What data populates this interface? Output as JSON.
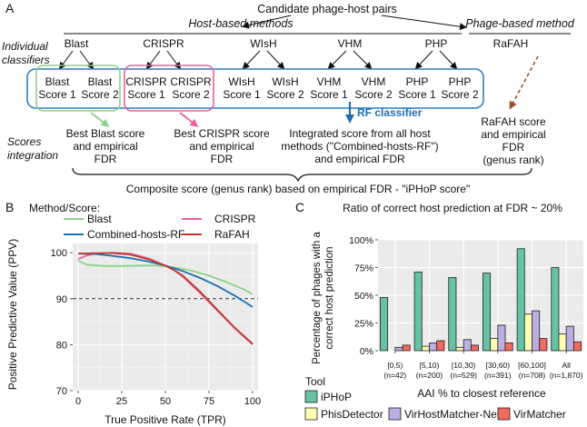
{
  "panelA": {
    "panel_label": "A",
    "top_title": "Candidate phage-host pairs",
    "host_methods_title": "Host-based methods",
    "phage_method_title": "Phage-based method",
    "row_label_classifiers_1": "Individual",
    "row_label_classifiers_2": "classifiers",
    "row_label_integration_1": "Scores",
    "row_label_integration_2": "integration",
    "classifiers": [
      "Blast",
      "CRISPR",
      "WIsH",
      "VHM",
      "PHP"
    ],
    "phage_classifier": "RaFAH",
    "scores": [
      {
        "l1": "Blast",
        "l2": "Score 1"
      },
      {
        "l1": "Blast",
        "l2": "Score 2"
      },
      {
        "l1": "CRISPR",
        "l2": "Score 1"
      },
      {
        "l1": "CRISPR",
        "l2": "Score 2"
      },
      {
        "l1": "WIsH",
        "l2": "Score 1"
      },
      {
        "l1": "WIsH",
        "l2": "Score 2"
      },
      {
        "l1": "VHM",
        "l2": "Score 1"
      },
      {
        "l1": "VHM",
        "l2": "Score 2"
      },
      {
        "l1": "PHP",
        "l2": "Score 1"
      },
      {
        "l1": "PHP",
        "l2": "Score 2"
      }
    ],
    "rf_classifier": "RF classifier",
    "best_blast_1": "Best Blast score",
    "best_blast_2": "and empirical",
    "best_blast_3": "FDR",
    "best_crispr_1": "Best CRISPR score",
    "best_crispr_2": "and empirical",
    "best_crispr_3": "FDR",
    "integrated_1": "Integrated score from all host",
    "integrated_2": "methods (\"Combined-hosts-RF\")",
    "integrated_3": "and empirical FDR",
    "rafah_1": "RaFAH score",
    "rafah_2": "and empirical",
    "rafah_3": "FDR",
    "rafah_4": "(genus rank)",
    "composite": "Composite score (genus rank) based on empirical FDR - \"iPHoP score\"",
    "colors": {
      "blast": "#8fd18a",
      "crispr": "#e8609e",
      "row_box": "#2f7fc1",
      "rf": "#1f6fb2",
      "rafah_arrow": "#a0522d"
    }
  },
  "panelB": {
    "panel_label": "B",
    "legend_title": "Method/Score:",
    "legend": [
      {
        "name": "Blast",
        "color": "#8fd18a"
      },
      {
        "name": "CRISPR",
        "color": "#e8609e"
      },
      {
        "name": "Combined-hosts-RF",
        "color": "#1f6fb2"
      },
      {
        "name": "RaFAH",
        "color": "#c0392b"
      }
    ],
    "xlabel": "True Positive Rate (TPR)",
    "ylabel": "Positive Predictive Value (PPV)"
  },
  "panelC": {
    "panel_label": "C",
    "legend_title": "Tool"
  },
  "chart_data": [
    {
      "type": "line",
      "panel": "B",
      "title": "",
      "xlabel": "True Positive Rate (TPR)",
      "ylabel": "Positive Predictive Value (PPV)",
      "xlim": [
        0,
        100
      ],
      "ylim": [
        70,
        102
      ],
      "xticks": [
        0,
        25,
        50,
        75,
        100
      ],
      "yticks": [
        70,
        80,
        90,
        100
      ],
      "reference_line": 90,
      "series": [
        {
          "name": "Blast",
          "color": "#8fd18a",
          "x": [
            0,
            5,
            15,
            25,
            35,
            45,
            55,
            65,
            75,
            85,
            95,
            100
          ],
          "y": [
            98.2,
            97.4,
            97.1,
            97.1,
            97.2,
            97.2,
            96.8,
            96.1,
            95.0,
            93.6,
            92.0,
            91.0
          ]
        },
        {
          "name": "CRISPR",
          "color": "#e8609e",
          "x": [
            0,
            5,
            10,
            20,
            30,
            40,
            50,
            55,
            60,
            70,
            80,
            90,
            100
          ],
          "y": [
            98.6,
            99.4,
            99.8,
            100.0,
            99.8,
            98.8,
            97.2,
            96.2,
            94.8,
            91.2,
            87.3,
            83.5,
            80.0
          ]
        },
        {
          "name": "Combined-hosts-RF",
          "color": "#1f6fb2",
          "x": [
            0,
            10,
            20,
            30,
            40,
            50,
            60,
            70,
            80,
            90,
            100
          ],
          "y": [
            99.8,
            99.7,
            99.3,
            98.8,
            98.1,
            97.2,
            96.0,
            94.5,
            92.7,
            90.6,
            88.2
          ]
        },
        {
          "name": "RaFAH",
          "color": "#c0392b",
          "x": [
            0,
            10,
            20,
            30,
            40,
            50,
            55,
            60,
            70,
            80,
            90,
            100
          ],
          "y": [
            99.8,
            99.9,
            99.9,
            99.6,
            98.6,
            97.2,
            96.2,
            95.0,
            91.5,
            87.5,
            83.6,
            80.2
          ]
        }
      ]
    },
    {
      "type": "bar",
      "panel": "C",
      "title": "Ratio of correct host prediction at FDR ~ 20%",
      "xlabel": "AAI % to closest reference",
      "ylabel": "Percentage of phages with a correct host prediction",
      "ylim": [
        0,
        100
      ],
      "yticks": [
        "0%",
        "25%",
        "50%",
        "75%",
        "100%"
      ],
      "categories": [
        "[0,5)",
        "[5,10)",
        "[10,30)",
        "[30,60)",
        "[60,100]",
        "All"
      ],
      "category_counts": [
        "(n=42)",
        "(n=200)",
        "(n=529)",
        "(n=391)",
        "(n=708)",
        "(n=1,870)"
      ],
      "series": [
        {
          "name": "iPHoP",
          "color": "#66c2a5",
          "values": [
            48,
            71,
            66,
            70,
            92,
            75
          ]
        },
        {
          "name": "PhisDetector",
          "color": "#ffffb3",
          "values": [
            0,
            4,
            3,
            11,
            33,
            15
          ]
        },
        {
          "name": "VirHostMatcher-Net",
          "color": "#bcaee0",
          "values": [
            3,
            7,
            10,
            23,
            36,
            22
          ]
        },
        {
          "name": "VirMatcher",
          "color": "#f06a5e",
          "values": [
            5,
            9,
            5,
            7,
            11,
            8
          ]
        }
      ]
    }
  ]
}
